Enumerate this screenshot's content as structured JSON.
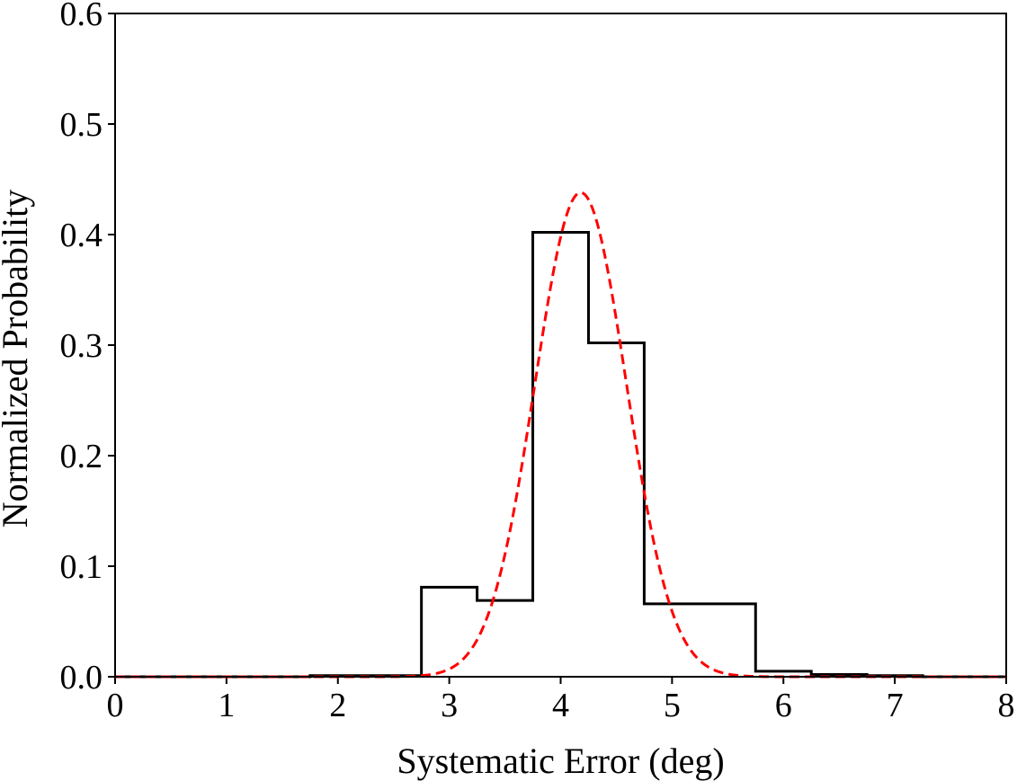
{
  "chart_data": {
    "type": "histogram",
    "xlabel": "Systematic Error (deg)",
    "ylabel": "Normalized Probability",
    "xlim": [
      0,
      8
    ],
    "ylim": [
      0,
      0.6
    ],
    "x_ticks": [
      "0",
      "1",
      "2",
      "3",
      "4",
      "5",
      "6",
      "7",
      "8"
    ],
    "y_ticks": [
      "0.0",
      "0.1",
      "0.2",
      "0.3",
      "0.4",
      "0.5",
      "0.6"
    ],
    "grid": false,
    "legend": "none",
    "series": [
      {
        "kind": "step-histogram",
        "color": "#000000",
        "bin_edges": [
          0,
          0.25,
          0.75,
          1.25,
          1.75,
          2.25,
          2.75,
          3.25,
          3.75,
          4.25,
          4.75,
          5.25,
          5.75,
          6.25,
          6.75,
          7.25,
          7.75,
          8
        ],
        "values": [
          0,
          0,
          0,
          0,
          0.001,
          0.001,
          0.081,
          0.069,
          0.402,
          0.302,
          0.066,
          0.066,
          0.005,
          0.002,
          0.001,
          0,
          0
        ]
      },
      {
        "kind": "gaussian-fit",
        "style": "dashed",
        "color": "#ff0000",
        "mean": 4.18,
        "sigma": 0.41,
        "peak": 0.438
      }
    ]
  }
}
